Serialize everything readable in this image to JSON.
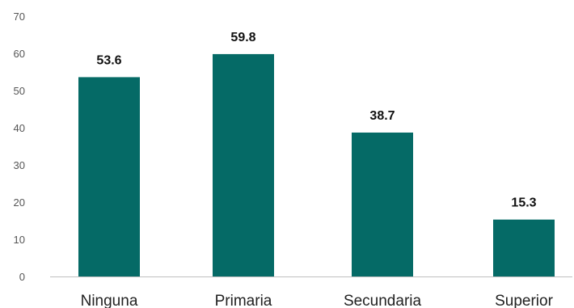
{
  "chart_data": {
    "type": "bar",
    "title": "",
    "xlabel": "",
    "ylabel": "",
    "categories": [
      "Ninguna",
      "Primaria",
      "Secundaria",
      "Superior"
    ],
    "values": [
      53.6,
      59.8,
      38.7,
      15.3
    ],
    "data_labels": [
      "53.6",
      "59.8",
      "38.7",
      "15.3"
    ],
    "ylim": [
      0,
      70
    ],
    "yticks": [
      0,
      10,
      20,
      30,
      40,
      50,
      60,
      70
    ],
    "ytick_labels": [
      "0",
      "10",
      "20",
      "30",
      "40",
      "50",
      "60",
      "70"
    ],
    "grid": false,
    "legend": "none",
    "bar_color": "#056a66",
    "axis_color": "#bfbfbf"
  }
}
